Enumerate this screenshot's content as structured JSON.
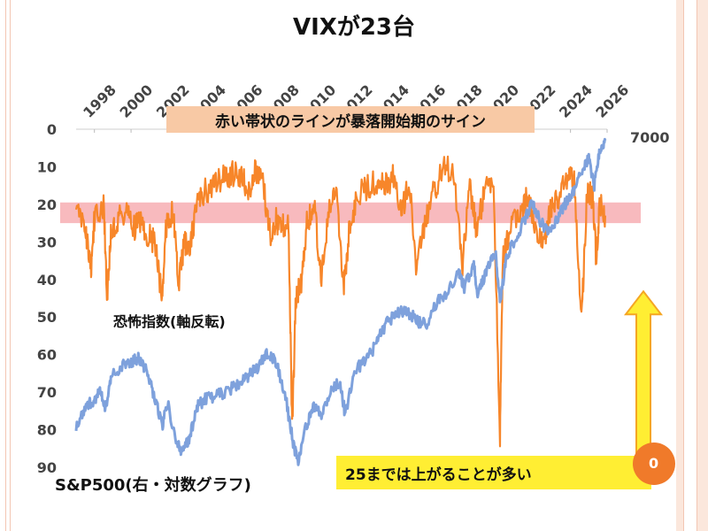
{
  "title": "VIXが23台",
  "callouts": {
    "top": "赤い帯状のラインが暴落開始期のサイン",
    "bottom": "25までは上がることが多い"
  },
  "labels": {
    "vix_series": "恐怖指数(軸反転)",
    "sp_series": "S&P500(右・対数グラフ)",
    "right_axis_value": "7000",
    "orange_dot_value": "0"
  },
  "colors": {
    "vix": "#f7862a",
    "sp": "#7ea1dc",
    "band": "#f6a3a8",
    "arrow_fill": "#ffee33",
    "arrow_stroke": "#f5a623"
  },
  "chart_data": {
    "type": "line",
    "x_ticks": [
      "1998",
      "2000",
      "2002",
      "2004",
      "2006",
      "2008",
      "2010",
      "2012",
      "2014",
      "2016",
      "2018",
      "2020",
      "2022",
      "2024",
      "2026"
    ],
    "y_left_ticks": [
      "0",
      "10",
      "20",
      "30",
      "40",
      "50",
      "60",
      "70",
      "80",
      "90"
    ],
    "y_left_range": [
      0,
      90
    ],
    "y_left_inverted": true,
    "y_right_label": "7000",
    "x_range": [
      1997,
      2026
    ],
    "band": {
      "from": 19.5,
      "to": 25
    },
    "series": [
      {
        "name": "恐怖指数(軸反転)",
        "axis": "left",
        "points": [
          [
            1997.0,
            22
          ],
          [
            1997.5,
            26
          ],
          [
            1997.8,
            38
          ],
          [
            1998.0,
            24
          ],
          [
            1998.5,
            20
          ],
          [
            1998.7,
            44
          ],
          [
            1998.9,
            28
          ],
          [
            1999.3,
            24
          ],
          [
            1999.8,
            22
          ],
          [
            2000.2,
            26
          ],
          [
            2000.5,
            24
          ],
          [
            2000.9,
            28
          ],
          [
            2001.3,
            30
          ],
          [
            2001.7,
            45
          ],
          [
            2001.9,
            26
          ],
          [
            2002.3,
            22
          ],
          [
            2002.6,
            42
          ],
          [
            2002.9,
            30
          ],
          [
            2003.2,
            33
          ],
          [
            2003.5,
            22
          ],
          [
            2003.9,
            17
          ],
          [
            2004.5,
            15
          ],
          [
            2005.0,
            13
          ],
          [
            2005.5,
            12
          ],
          [
            2006.0,
            12
          ],
          [
            2006.4,
            17
          ],
          [
            2006.8,
            11
          ],
          [
            2007.2,
            14
          ],
          [
            2007.6,
            28
          ],
          [
            2007.9,
            24
          ],
          [
            2008.2,
            26
          ],
          [
            2008.6,
            24
          ],
          [
            2008.8,
            80
          ],
          [
            2009.0,
            45
          ],
          [
            2009.3,
            40
          ],
          [
            2009.6,
            25
          ],
          [
            2010.0,
            20
          ],
          [
            2010.4,
            40
          ],
          [
            2010.8,
            22
          ],
          [
            2011.2,
            17
          ],
          [
            2011.6,
            43
          ],
          [
            2011.9,
            28
          ],
          [
            2012.3,
            18
          ],
          [
            2012.8,
            16
          ],
          [
            2013.3,
            14
          ],
          [
            2013.8,
            15
          ],
          [
            2014.3,
            13
          ],
          [
            2014.8,
            22
          ],
          [
            2015.2,
            14
          ],
          [
            2015.6,
            38
          ],
          [
            2016.0,
            26
          ],
          [
            2016.5,
            17
          ],
          [
            2017.0,
            11
          ],
          [
            2017.6,
            10
          ],
          [
            2018.1,
            36
          ],
          [
            2018.5,
            15
          ],
          [
            2018.9,
            28
          ],
          [
            2019.3,
            16
          ],
          [
            2019.8,
            14
          ],
          [
            2020.15,
            82
          ],
          [
            2020.3,
            35
          ],
          [
            2020.7,
            26
          ],
          [
            2021.2,
            22
          ],
          [
            2021.7,
            18
          ],
          [
            2022.2,
            30
          ],
          [
            2022.6,
            28
          ],
          [
            2022.9,
            22
          ],
          [
            2023.3,
            18
          ],
          [
            2023.8,
            14
          ],
          [
            2024.2,
            13
          ],
          [
            2024.6,
            52
          ],
          [
            2024.9,
            16
          ],
          [
            2025.2,
            18
          ],
          [
            2025.4,
            34
          ],
          [
            2025.6,
            20
          ],
          [
            2025.9,
            23
          ]
        ]
      },
      {
        "name": "S&P500(右・対数グラフ)",
        "axis": "right",
        "points": [
          [
            1997.0,
            80
          ],
          [
            1997.5,
            74
          ],
          [
            1998.0,
            72
          ],
          [
            1998.3,
            69
          ],
          [
            1998.6,
            75
          ],
          [
            1998.9,
            66
          ],
          [
            1999.5,
            63
          ],
          [
            2000.0,
            62
          ],
          [
            2000.4,
            61
          ],
          [
            2000.8,
            64
          ],
          [
            2001.2,
            70
          ],
          [
            2001.7,
            79
          ],
          [
            2002.0,
            73
          ],
          [
            2002.5,
            84
          ],
          [
            2002.8,
            86
          ],
          [
            2003.2,
            82
          ],
          [
            2003.6,
            74
          ],
          [
            2004.0,
            72
          ],
          [
            2004.6,
            71
          ],
          [
            2005.2,
            70
          ],
          [
            2005.8,
            68
          ],
          [
            2006.3,
            66
          ],
          [
            2006.8,
            64
          ],
          [
            2007.4,
            60
          ],
          [
            2007.9,
            62
          ],
          [
            2008.4,
            70
          ],
          [
            2008.8,
            82
          ],
          [
            2009.1,
            89
          ],
          [
            2009.5,
            80
          ],
          [
            2009.9,
            74
          ],
          [
            2010.4,
            76
          ],
          [
            2010.9,
            70
          ],
          [
            2011.4,
            67
          ],
          [
            2011.7,
            76
          ],
          [
            2012.2,
            64
          ],
          [
            2012.8,
            62
          ],
          [
            2013.4,
            57
          ],
          [
            2013.9,
            52
          ],
          [
            2014.5,
            49
          ],
          [
            2015.0,
            48
          ],
          [
            2015.6,
            51
          ],
          [
            2016.1,
            52
          ],
          [
            2016.7,
            46
          ],
          [
            2017.3,
            43
          ],
          [
            2017.9,
            38
          ],
          [
            2018.2,
            42
          ],
          [
            2018.7,
            36
          ],
          [
            2018.95,
            44
          ],
          [
            2019.4,
            38
          ],
          [
            2019.9,
            33
          ],
          [
            2020.15,
            46
          ],
          [
            2020.5,
            34
          ],
          [
            2020.9,
            30
          ],
          [
            2021.4,
            25
          ],
          [
            2021.9,
            20
          ],
          [
            2022.3,
            24
          ],
          [
            2022.8,
            28
          ],
          [
            2023.2,
            24
          ],
          [
            2023.7,
            20
          ],
          [
            2024.1,
            17
          ],
          [
            2024.6,
            11
          ],
          [
            2025.0,
            8
          ],
          [
            2025.3,
            15
          ],
          [
            2025.6,
            5
          ],
          [
            2025.9,
            3
          ]
        ]
      }
    ],
    "annotations": {
      "arrow_up": {
        "x_year": 2025.4,
        "y_from": 87,
        "y_to": 46
      }
    }
  }
}
